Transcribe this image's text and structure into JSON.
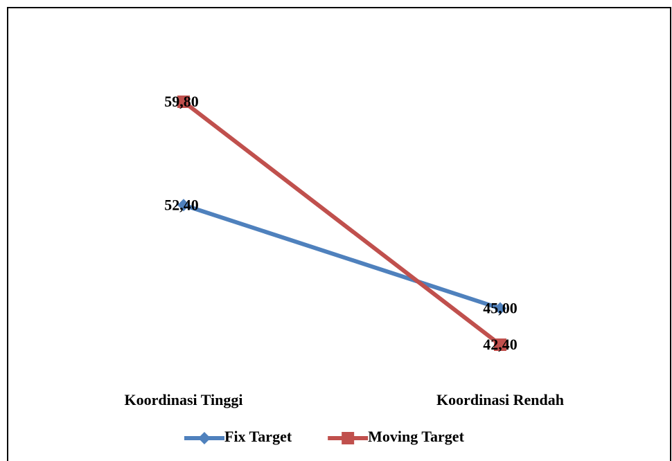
{
  "chart_data": {
    "type": "line",
    "categories": [
      "Koordinasi Tinggi",
      "Koordinasi Rendah"
    ],
    "series": [
      {
        "name": "Fix Target",
        "color": "#4f81bd",
        "marker": "diamond",
        "values": [
          52.4,
          45.0
        ],
        "value_labels": [
          "52,40",
          "45,00"
        ]
      },
      {
        "name": "Moving Target",
        "color": "#c0504d",
        "marker": "square",
        "values": [
          59.8,
          42.4
        ],
        "value_labels": [
          "59,80",
          "42,40"
        ]
      }
    ],
    "legend": "bottom"
  }
}
